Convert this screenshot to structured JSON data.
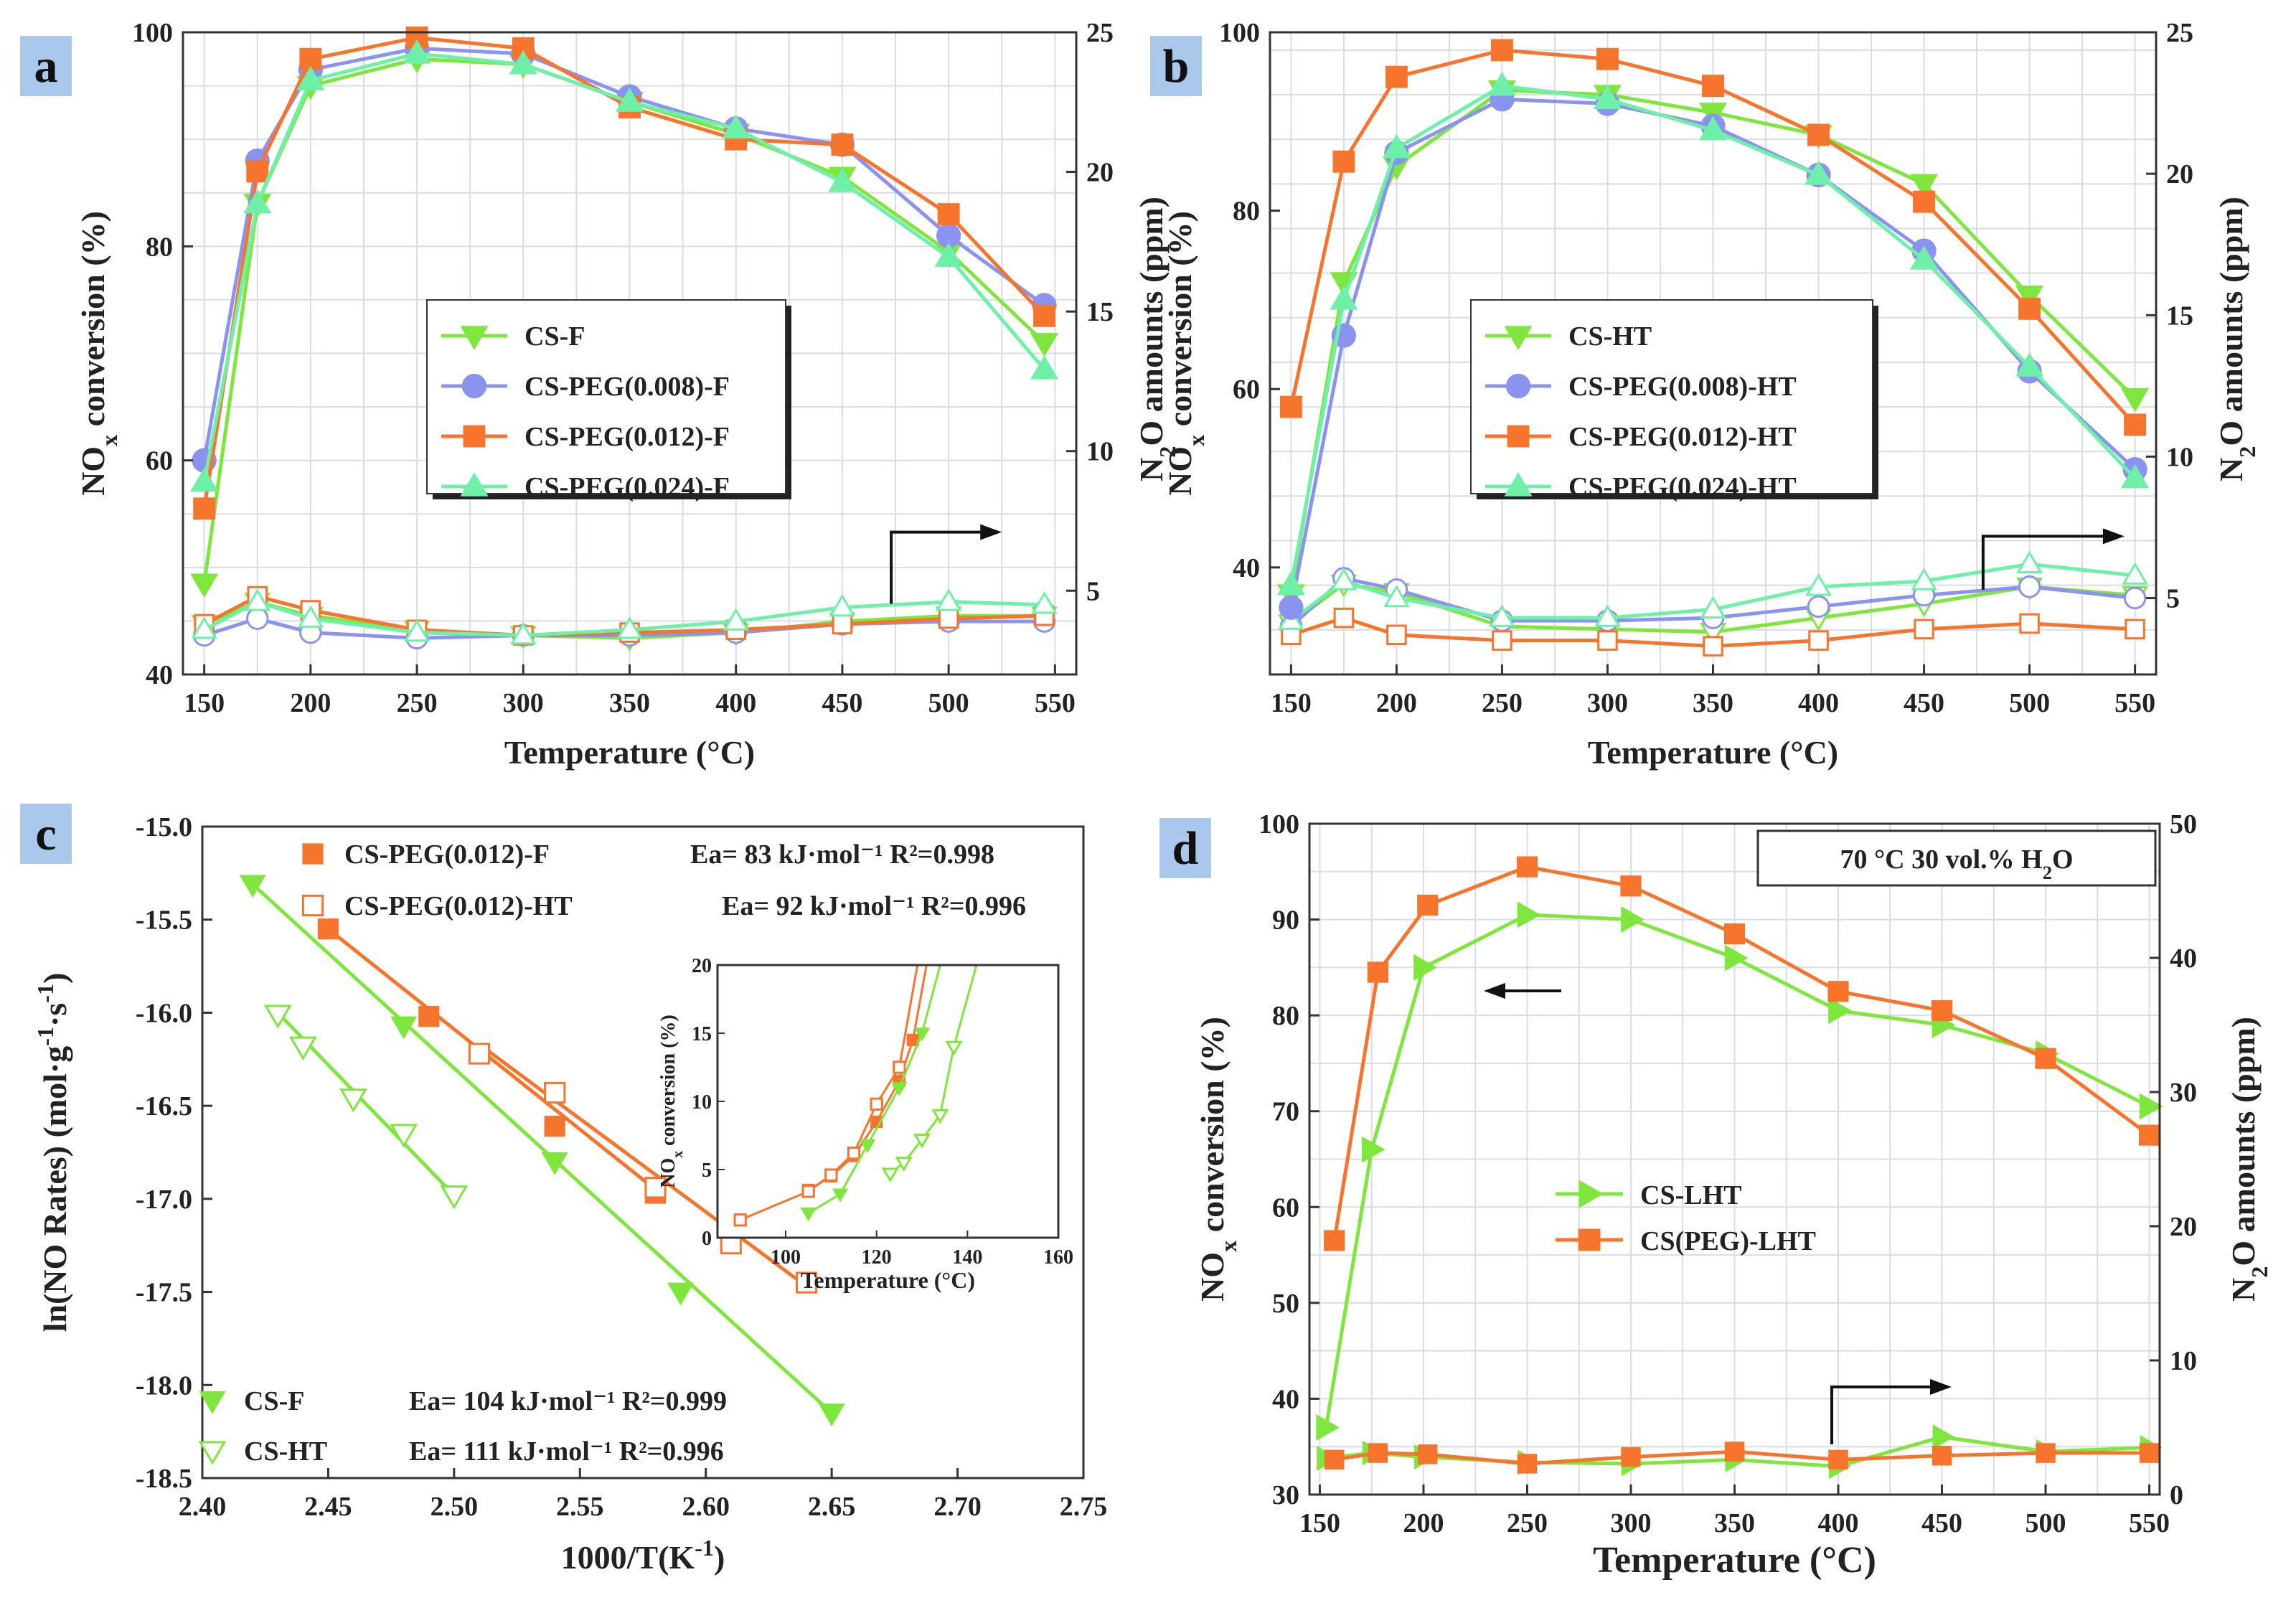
{
  "figure": {
    "panels_note": "Four-panel figure a-d",
    "colors": {
      "green": "#7ee63c",
      "blue": "#8a93f0",
      "orange": "#f7742c",
      "teal": "#6ef0a8",
      "panel_label_bg": "#a9c8ec",
      "grid": "#d9dce8",
      "axis": "#333333"
    }
  },
  "chart_data": [
    {
      "panel": "a",
      "type": "line",
      "xlabel": "Temperature (°C)",
      "ylabel": "NOx conversion (%)",
      "y2label": "N2O amounts (ppm)",
      "xlim": [
        140,
        560
      ],
      "ylim": [
        40,
        100
      ],
      "y2lim": [
        2,
        25
      ],
      "xticks": [
        150,
        200,
        250,
        300,
        350,
        400,
        450,
        500,
        550
      ],
      "yticks": [
        40,
        60,
        80,
        100
      ],
      "y2ticks": [
        5,
        10,
        15,
        20,
        25
      ],
      "x": [
        150,
        175,
        200,
        250,
        300,
        350,
        400,
        450,
        500,
        545
      ],
      "series": [
        {
          "name": "CS-F",
          "marker": "tri-down",
          "color": "#7ee63c",
          "nox": [
            48.5,
            84,
            95,
            97.5,
            97,
            93.5,
            90.5,
            86.5,
            79.5,
            71
          ],
          "n2o": [
            3.8,
            4.6,
            4.1,
            3.6,
            3.4,
            3.3,
            3.5,
            3.9,
            4.1,
            4.1
          ]
        },
        {
          "name": "CS-PEG(0.008)-F",
          "marker": "circle",
          "color": "#8a93f0",
          "nox": [
            60,
            88,
            96.5,
            98.5,
            98,
            94,
            91,
            89.5,
            81,
            74.5
          ],
          "n2o": [
            3.4,
            4.0,
            3.5,
            3.3,
            3.4,
            3.4,
            3.5,
            3.8,
            3.9,
            3.9
          ]
        },
        {
          "name": "CS-PEG(0.012)-F",
          "marker": "square",
          "color": "#f7742c",
          "nox": [
            55.5,
            87,
            97.5,
            99.5,
            98.5,
            93,
            90,
            89.5,
            83,
            73.5
          ],
          "n2o": [
            3.8,
            4.8,
            4.3,
            3.6,
            3.4,
            3.5,
            3.6,
            3.8,
            4.0,
            4.1
          ]
        },
        {
          "name": "CS-PEG(0.024)-F",
          "marker": "tri-up",
          "color": "#6ef0a8",
          "nox": [
            58,
            84,
            95.5,
            98,
            97,
            93.5,
            91,
            86,
            79,
            68.5
          ],
          "n2o": [
            3.6,
            4.6,
            4.0,
            3.5,
            3.4,
            3.6,
            3.9,
            4.4,
            4.6,
            4.5
          ]
        }
      ],
      "legend": [
        "CS-F",
        "CS-PEG(0.008)-F",
        "CS-PEG(0.012)-F",
        "CS-PEG(0.024)-F"
      ]
    },
    {
      "panel": "b",
      "type": "line",
      "xlabel": "Temperature (°C)",
      "ylabel": "NOx conversion (%)",
      "y2label": "N2O amounts (ppm)",
      "xlim": [
        140,
        560
      ],
      "ylim": [
        28,
        100
      ],
      "y2lim": [
        2.3,
        25
      ],
      "xticks": [
        150,
        200,
        250,
        300,
        350,
        400,
        450,
        500,
        550
      ],
      "yticks": [
        40,
        60,
        80,
        100
      ],
      "y2ticks": [
        5,
        10,
        15,
        20,
        25
      ],
      "x": [
        150,
        175,
        200,
        250,
        300,
        350,
        400,
        450,
        500,
        550
      ],
      "series": [
        {
          "name": "CS-HT",
          "marker": "tri-down",
          "color": "#7ee63c",
          "nox": [
            37,
            72,
            85,
            93.5,
            93,
            91,
            88.5,
            83,
            70.5,
            59
          ],
          "n2o": [
            4.1,
            5.5,
            5.2,
            4.0,
            3.9,
            3.8,
            4.3,
            4.8,
            5.4,
            5.1
          ]
        },
        {
          "name": "CS-PEG(0.008)-HT",
          "marker": "circle",
          "color": "#8a93f0",
          "nox": [
            35.5,
            66,
            86.5,
            92.5,
            92,
            89.5,
            84,
            75.5,
            62,
            51
          ],
          "n2o": [
            4.0,
            5.7,
            5.3,
            4.2,
            4.2,
            4.3,
            4.7,
            5.1,
            5.4,
            5.0
          ]
        },
        {
          "name": "CS-PEG(0.012)-HT",
          "marker": "square",
          "color": "#f7742c",
          "nox": [
            58,
            85.5,
            95,
            98,
            97,
            94,
            88.5,
            81,
            69,
            56
          ],
          "n2o": [
            3.7,
            4.3,
            3.7,
            3.5,
            3.5,
            3.3,
            3.5,
            3.9,
            4.1,
            3.9
          ]
        },
        {
          "name": "CS-PEG(0.024)-HT",
          "marker": "tri-up",
          "color": "#6ef0a8",
          "nox": [
            38,
            70,
            87,
            94,
            92.5,
            89,
            84,
            74.5,
            62.5,
            50
          ],
          "n2o": [
            4.2,
            5.6,
            5.0,
            4.3,
            4.3,
            4.6,
            5.4,
            5.6,
            6.2,
            5.8
          ]
        }
      ],
      "legend": [
        "CS-HT",
        "CS-PEG(0.008)-HT",
        "CS-PEG(0.012)-HT",
        "CS-PEG(0.024)-HT"
      ]
    },
    {
      "panel": "c",
      "type": "scatter",
      "xlabel": "1000/T(K⁻¹)",
      "ylabel": "ln(NO Rates) (mol·g⁻¹·s⁻¹)",
      "xlim": [
        2.4,
        2.75
      ],
      "ylim": [
        -18.5,
        -15.0
      ],
      "xticks": [
        2.4,
        2.45,
        2.5,
        2.55,
        2.6,
        2.65,
        2.7,
        2.75
      ],
      "yticks": [
        -15.0,
        -15.5,
        -16.0,
        -16.5,
        -17.0,
        -17.5,
        -18.0,
        -18.5
      ],
      "series": [
        {
          "name": "CS-PEG(0.012)-F",
          "marker": "square-filled",
          "color": "#f7742c",
          "x": [
            2.45,
            2.49,
            2.54,
            2.58
          ],
          "y": [
            -15.55,
            -16.02,
            -16.61,
            -16.97
          ],
          "fit": [
            [
              2.45,
              -15.55
            ],
            [
              2.58,
              -16.95
            ]
          ],
          "ea": "Ea= 83 kJ·mol⁻¹ R²=0.998"
        },
        {
          "name": "CS-PEG(0.012)-HT",
          "marker": "square-open",
          "color": "#f7742c",
          "x": [
            2.51,
            2.54,
            2.58,
            2.61,
            2.64
          ],
          "y": [
            -16.22,
            -16.43,
            -16.94,
            -17.24,
            -17.45
          ],
          "fit": [
            [
              2.51,
              -16.17
            ],
            [
              2.64,
              -17.47
            ]
          ],
          "ea": "Ea= 92 kJ·mol⁻¹ R²=0.996"
        },
        {
          "name": "CS-F",
          "marker": "tri-down-filled",
          "color": "#7ee63c",
          "x": [
            2.42,
            2.48,
            2.54,
            2.59,
            2.65
          ],
          "y": [
            -15.31,
            -16.07,
            -16.8,
            -17.5,
            -18.15
          ],
          "fit": [
            [
              2.42,
              -15.31
            ],
            [
              2.65,
              -18.15
            ]
          ],
          "ea": "Ea= 104 kJ·mol⁻¹ R²=0.999"
        },
        {
          "name": "CS-HT",
          "marker": "tri-down-open",
          "color": "#7ee63c",
          "x": [
            2.43,
            2.44,
            2.46,
            2.48,
            2.5
          ],
          "y": [
            -16.01,
            -16.18,
            -16.46,
            -16.65,
            -16.98
          ],
          "fit": [
            [
              2.43,
              -16.0
            ],
            [
              2.5,
              -16.98
            ]
          ],
          "ea": "Ea= 111 kJ·mol⁻¹ R²=0.996"
        }
      ],
      "inset": {
        "xlabel": "Temperature (°C)",
        "ylabel": "NOx conversion (%)",
        "xlim": [
          85,
          160
        ],
        "ylim": [
          0,
          20
        ],
        "xticks": [
          100,
          120,
          140,
          160
        ],
        "yticks": [
          0,
          5,
          10,
          15,
          20
        ],
        "series": [
          {
            "name": "CS-PEG(0.012)-F",
            "color": "#f7742c",
            "marker": "square-filled",
            "x": [
              105,
              110,
              115,
              120,
              125,
              128,
              131
            ],
            "y": [
              3.5,
              4.5,
              6,
              8.5,
              11.5,
              14.5,
              20
            ]
          },
          {
            "name": "CS-PEG(0.012)-HT",
            "color": "#f7742c",
            "marker": "square-open",
            "x": [
              90,
              105,
              110,
              115,
              120,
              125,
              129
            ],
            "y": [
              1.3,
              3.4,
              4.6,
              6.2,
              9.8,
              12.5,
              20
            ]
          },
          {
            "name": "CS-F",
            "color": "#7ee63c",
            "marker": "tri-down-filled",
            "x": [
              105,
              112,
              118,
              125,
              130,
              134
            ],
            "y": [
              1.8,
              3.2,
              6.8,
              11,
              15,
              20
            ]
          },
          {
            "name": "CS-HT",
            "color": "#7ee63c",
            "marker": "tri-down-open",
            "x": [
              123,
              126,
              130,
              134,
              137,
              142
            ],
            "y": [
              4.7,
              5.5,
              7.2,
              9,
              14,
              20
            ]
          }
        ]
      },
      "legend": [
        "CS-PEG(0.012)-F",
        "CS-PEG(0.012)-HT",
        "CS-F",
        "CS-HT"
      ]
    },
    {
      "panel": "d",
      "type": "line",
      "xlabel": "Temperature (°C)",
      "ylabel": "NOx conversion (%)",
      "y2label": "N2O amounts (ppm)",
      "annotation": "70 °C 30 vol.% H2O",
      "xlim": [
        145,
        555
      ],
      "ylim": [
        30,
        100
      ],
      "y2lim": [
        0,
        50
      ],
      "xticks": [
        150,
        200,
        250,
        300,
        350,
        400,
        450,
        500,
        550
      ],
      "yticks": [
        30,
        40,
        50,
        60,
        70,
        80,
        90,
        100
      ],
      "y2ticks": [
        0,
        10,
        20,
        30,
        40,
        50
      ],
      "series": [
        {
          "name": "CS-LHT",
          "marker": "tri-right",
          "color": "#7ee63c",
          "x": [
            153,
            175,
            200,
            250,
            300,
            350,
            400,
            450,
            500,
            550
          ],
          "nox": [
            37,
            66,
            85,
            90.5,
            90,
            86,
            80.5,
            79,
            76,
            70.5
          ],
          "n2o": [
            2.7,
            3.1,
            2.8,
            2.4,
            2.3,
            2.6,
            2.1,
            4.3,
            3.2,
            3.5
          ]
        },
        {
          "name": "CS(PEG)-LHT",
          "marker": "square",
          "color": "#f7742c",
          "x": [
            157,
            178,
            202,
            250,
            300,
            350,
            400,
            450,
            500,
            550
          ],
          "nox": [
            56.5,
            84.5,
            91.5,
            95.5,
            93.5,
            88.5,
            82.5,
            80.5,
            75.5,
            67.5
          ],
          "n2o": [
            2.6,
            3.1,
            3.0,
            2.3,
            2.8,
            3.2,
            2.6,
            2.9,
            3.1,
            3.1
          ]
        }
      ],
      "legend": [
        "CS-LHT",
        "CS(PEG)-LHT"
      ]
    }
  ],
  "labels": {
    "a": "a",
    "b": "b",
    "c": "c",
    "d": "d",
    "temp": "Temperature (°C)",
    "nox": "NO",
    "nox_sub": "x",
    "nox_rest": " conversion (%)",
    "n2o": "N",
    "n2o_sub": "2",
    "n2o_rest": "O amounts (ppm)",
    "c_x": "1000/T(K",
    "c_x_sup": "-1",
    "c_x_end": ")",
    "c_y": "ln(NO Rates) (mol·g",
    "c_y_sup1": "-1",
    "c_y_mid": "·s",
    "c_y_sup2": "-1",
    "c_y_end": ")",
    "d_ann": "70 °C 30 vol.% H",
    "d_ann_sub": "2",
    "d_ann_end": "O"
  }
}
